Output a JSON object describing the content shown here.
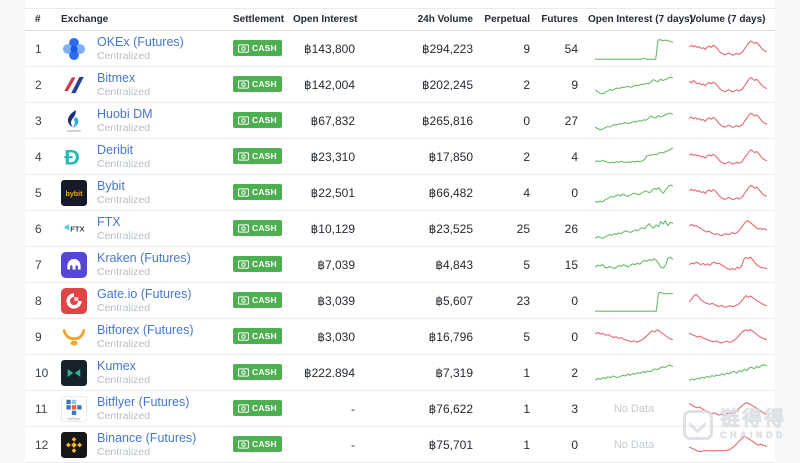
{
  "labels": {
    "no_data": "No Data"
  },
  "colors": {
    "badge_green": "#4caf50",
    "spark_green": "#69bb6d",
    "spark_red": "#e76a6e",
    "link_blue": "#4577cf"
  },
  "watermark": {
    "cn": "链得得",
    "en": "CHAINDD"
  },
  "columns": [
    "#",
    "Exchange",
    "Settlement",
    "Open Interest",
    "24h Volume",
    "Perpetual",
    "Futures",
    "Open Interest (7 days)",
    "Volume (7 days)"
  ],
  "rows": [
    {
      "rank": "1",
      "name": "OKEx (Futures)",
      "type": "Centralized",
      "settlement": "CASH",
      "logo": "okex-logo",
      "open_interest": "฿143,800",
      "volume_24h": "฿294,223",
      "perpetual": "9",
      "futures": "54",
      "oi_spark": {
        "color": "green",
        "points": [
          4,
          4,
          4,
          4,
          4,
          4,
          4,
          4,
          4,
          4,
          4,
          4,
          4,
          4,
          4,
          4,
          4,
          4,
          4,
          4,
          9,
          4,
          4,
          4,
          4,
          4,
          96,
          96,
          92,
          95,
          93,
          88,
          86
        ]
      },
      "vol_spark": {
        "color": "red",
        "points": [
          64,
          70,
          63,
          67,
          60,
          63,
          55,
          58,
          50,
          62,
          66,
          60,
          70,
          65,
          55,
          42,
          34,
          28,
          25,
          29,
          33,
          27,
          23,
          27,
          32,
          26,
          31,
          40,
          55,
          68,
          80,
          90,
          86,
          78,
          84,
          74,
          62,
          50,
          44,
          40
        ]
      }
    },
    {
      "rank": "2",
      "name": "Bitmex",
      "type": "Centralized",
      "settlement": "CASH",
      "logo": "bitmex-logo",
      "open_interest": "฿142,004",
      "volume_24h": "฿202,245",
      "perpetual": "2",
      "futures": "9",
      "oi_spark": {
        "color": "green",
        "points": [
          28,
          20,
          12,
          10,
          18,
          24,
          30,
          26,
          34,
          38,
          36,
          42,
          40,
          46,
          44,
          42,
          48,
          52,
          50,
          56,
          54,
          60,
          58,
          66,
          78,
          72,
          68,
          80,
          74,
          78,
          84,
          90,
          86
        ]
      },
      "vol_spark": {
        "color": "red",
        "points": [
          70,
          62,
          74,
          66,
          58,
          62,
          54,
          57,
          48,
          60,
          64,
          58,
          66,
          60,
          50,
          38,
          30,
          24,
          21,
          26,
          30,
          24,
          20,
          25,
          30,
          24,
          28,
          36,
          50,
          64,
          78,
          88,
          82,
          74,
          80,
          70,
          58,
          46,
          40,
          36
        ]
      }
    },
    {
      "rank": "3",
      "name": "Huobi DM",
      "type": "Centralized",
      "settlement": "CASH",
      "logo": "huobi-logo",
      "open_interest": "฿67,832",
      "volume_24h": "฿265,816",
      "perpetual": "0",
      "futures": "27",
      "oi_spark": {
        "color": "green",
        "points": [
          22,
          16,
          10,
          14,
          20,
          26,
          24,
          30,
          36,
          34,
          40,
          38,
          44,
          42,
          40,
          46,
          50,
          48,
          54,
          52,
          58,
          56,
          64,
          76,
          70,
          66,
          78,
          72,
          76,
          82,
          86,
          90,
          84
        ]
      },
      "vol_spark": {
        "color": "red",
        "points": [
          66,
          72,
          64,
          68,
          61,
          64,
          56,
          59,
          51,
          63,
          67,
          61,
          69,
          63,
          53,
          40,
          32,
          26,
          23,
          28,
          32,
          26,
          22,
          26,
          31,
          25,
          29,
          38,
          53,
          66,
          79,
          89,
          84,
          76,
          82,
          72,
          60,
          48,
          42,
          38
        ]
      }
    },
    {
      "rank": "4",
      "name": "Deribit",
      "type": "Centralized",
      "settlement": "CASH",
      "logo": "deribit-logo",
      "open_interest": "฿23,310",
      "volume_24h": "฿17,850",
      "perpetual": "2",
      "futures": "4",
      "oi_spark": {
        "color": "green",
        "points": [
          30,
          34,
          30,
          36,
          32,
          28,
          24,
          28,
          25,
          30,
          27,
          32,
          28,
          26,
          30,
          27,
          31,
          28,
          32,
          30,
          34,
          40,
          58,
          62,
          60,
          66,
          64,
          70,
          74,
          72,
          78,
          82,
          88,
          94
        ]
      },
      "vol_spark": {
        "color": "red",
        "points": [
          62,
          68,
          60,
          64,
          57,
          60,
          52,
          55,
          47,
          59,
          63,
          57,
          65,
          59,
          49,
          37,
          29,
          23,
          20,
          25,
          29,
          23,
          19,
          23,
          28,
          22,
          26,
          35,
          50,
          63,
          76,
          86,
          81,
          73,
          79,
          69,
          57,
          45,
          39,
          35
        ]
      }
    },
    {
      "rank": "5",
      "name": "Bybit",
      "type": "Centralized",
      "settlement": "CASH",
      "logo": "bybit-logo",
      "open_interest": "฿22,501",
      "volume_24h": "฿66,482",
      "perpetual": "4",
      "futures": "0",
      "oi_spark": {
        "color": "green",
        "points": [
          12,
          8,
          14,
          10,
          18,
          24,
          30,
          36,
          32,
          40,
          44,
          38,
          46,
          42,
          36,
          40,
          46,
          52,
          48,
          44,
          50,
          56,
          62,
          58,
          54,
          66,
          74,
          70,
          78,
          60,
          52,
          68,
          82,
          90,
          86
        ]
      },
      "vol_spark": {
        "color": "red",
        "points": [
          65,
          71,
          63,
          67,
          60,
          63,
          55,
          58,
          50,
          62,
          66,
          60,
          68,
          62,
          52,
          39,
          31,
          25,
          22,
          27,
          31,
          25,
          21,
          25,
          30,
          24,
          28,
          37,
          52,
          65,
          78,
          88,
          83,
          75,
          81,
          71,
          59,
          47,
          41,
          37
        ]
      }
    },
    {
      "rank": "6",
      "name": "FTX",
      "type": "Centralized",
      "settlement": "CASH",
      "logo": "ftx-logo",
      "open_interest": "฿10,129",
      "volume_24h": "฿23,525",
      "perpetual": "25",
      "futures": "26",
      "oi_spark": {
        "color": "green",
        "points": [
          10,
          16,
          12,
          8,
          14,
          20,
          26,
          22,
          30,
          26,
          34,
          30,
          38,
          44,
          40,
          36,
          42,
          48,
          44,
          52,
          58,
          54,
          66,
          78,
          62,
          56,
          72,
          64,
          88,
          76,
          92,
          68,
          84,
          80
        ]
      },
      "vol_spark": {
        "color": "red",
        "points": [
          68,
          74,
          66,
          70,
          62,
          58,
          50,
          44,
          38,
          42,
          36,
          30,
          26,
          30,
          25,
          21,
          26,
          31,
          25,
          29,
          35,
          30,
          34,
          42,
          56,
          70,
          84,
          92,
          86,
          78,
          70,
          60,
          52,
          56,
          50,
          54,
          48
        ]
      }
    },
    {
      "rank": "7",
      "name": "Kraken (Futures)",
      "type": "Centralized",
      "settlement": "CASH",
      "logo": "kraken-logo",
      "open_interest": "฿7,039",
      "volume_24h": "฿4,843",
      "perpetual": "5",
      "futures": "15",
      "oi_spark": {
        "color": "green",
        "points": [
          44,
          52,
          48,
          56,
          42,
          38,
          46,
          40,
          36,
          42,
          50,
          46,
          54,
          48,
          44,
          52,
          58,
          54,
          62,
          56,
          66,
          74,
          70,
          78,
          74,
          82,
          76,
          60,
          42,
          38,
          50,
          84,
          90,
          80
        ]
      },
      "vol_spark": {
        "color": "red",
        "points": [
          55,
          62,
          58,
          66,
          60,
          54,
          60,
          52,
          58,
          50,
          62,
          66,
          58,
          62,
          54,
          48,
          40,
          34,
          30,
          36,
          30,
          42,
          36,
          48,
          80,
          88,
          84,
          90,
          76,
          62,
          50,
          44,
          40,
          38,
          36
        ]
      }
    },
    {
      "rank": "8",
      "name": "Gate.io (Futures)",
      "type": "Centralized",
      "settlement": "CASH",
      "logo": "gateio-logo",
      "open_interest": "฿3,039",
      "volume_24h": "฿5,607",
      "perpetual": "23",
      "futures": "0",
      "oi_spark": {
        "color": "green",
        "points": [
          4,
          4,
          4,
          4,
          4,
          4,
          4,
          4,
          4,
          4,
          4,
          4,
          4,
          4,
          4,
          4,
          4,
          4,
          4,
          4,
          4,
          4,
          4,
          4,
          4,
          4,
          4,
          90,
          94,
          88,
          86,
          88,
          87,
          88
        ]
      },
      "vol_spark": {
        "color": "red",
        "points": [
          50,
          62,
          78,
          84,
          72,
          58,
          50,
          44,
          40,
          36,
          42,
          36,
          30,
          26,
          31,
          26,
          22,
          26,
          30,
          25,
          29,
          34,
          40,
          52,
          66,
          78,
          70,
          76,
          68,
          60,
          52,
          46,
          40,
          34,
          30
        ]
      }
    },
    {
      "rank": "9",
      "name": "Bitforex (Futures)",
      "type": "Centralized",
      "settlement": "CASH",
      "logo": "bitforex-logo",
      "open_interest": "฿3,030",
      "volume_24h": "฿16,796",
      "perpetual": "5",
      "futures": "0",
      "oi_spark": {
        "color": "red",
        "points": [
          68,
          74,
          66,
          70,
          60,
          64,
          56,
          50,
          54,
          46,
          50,
          42,
          38,
          34,
          30,
          34,
          28,
          32,
          38,
          46,
          58,
          70,
          82,
          76,
          86,
          80,
          72,
          62,
          52,
          44,
          40
        ]
      },
      "vol_spark": {
        "color": "red",
        "points": [
          70,
          64,
          58,
          52,
          56,
          48,
          44,
          38,
          34,
          30,
          34,
          28,
          24,
          28,
          33,
          27,
          31,
          38,
          50,
          64,
          78,
          86,
          82,
          88,
          78,
          68,
          58,
          50,
          44,
          40
        ]
      }
    },
    {
      "rank": "10",
      "name": "Kumex",
      "type": "Centralized",
      "settlement": "CASH",
      "logo": "kumex-logo",
      "open_interest": "฿222.894",
      "volume_24h": "฿7,319",
      "perpetual": "1",
      "futures": "2",
      "oi_spark": {
        "color": "green",
        "points": [
          20,
          26,
          22,
          30,
          26,
          34,
          30,
          38,
          34,
          30,
          36,
          42,
          38,
          46,
          42,
          50,
          46,
          54,
          50,
          58,
          54,
          62,
          58,
          66,
          72,
          68,
          76,
          82,
          78,
          86,
          90,
          84
        ]
      },
      "vol_spark": {
        "color": "green",
        "points": [
          18,
          24,
          20,
          28,
          24,
          32,
          28,
          36,
          32,
          40,
          36,
          44,
          40,
          48,
          44,
          52,
          48,
          56,
          60,
          52,
          64,
          58,
          70,
          64,
          76,
          80,
          72,
          84,
          78,
          88,
          92,
          86
        ]
      }
    },
    {
      "rank": "11",
      "name": "Bitflyer (Futures)",
      "type": "Centralized",
      "settlement": "CASH",
      "logo": "bitflyer-logo",
      "open_interest": "-",
      "volume_24h": "฿76,622",
      "perpetual": "1",
      "futures": "3",
      "oi_spark": {
        "no_data": true
      },
      "vol_spark": {
        "color": "red",
        "points": [
          78,
          70,
          64,
          58,
          62,
          54,
          48,
          42,
          36,
          30,
          34,
          28,
          24,
          29,
          24,
          30,
          35,
          30,
          36,
          44,
          56,
          66,
          76,
          82,
          78,
          72,
          64,
          56,
          48,
          40,
          32,
          28
        ]
      }
    },
    {
      "rank": "12",
      "name": "Binance (Futures)",
      "type": "Centralized",
      "settlement": "CASH",
      "logo": "binance-logo",
      "open_interest": "-",
      "volume_24h": "฿75,701",
      "perpetual": "1",
      "futures": "0",
      "oi_spark": {
        "no_data": true
      },
      "vol_spark": {
        "color": "red",
        "points": [
          42,
          36,
          30,
          24,
          20,
          24,
          26,
          25,
          25,
          25,
          25,
          26,
          25,
          26,
          28,
          34,
          44,
          56,
          70,
          84,
          92,
          86,
          78,
          70,
          60,
          52,
          56,
          50,
          46
        ]
      }
    }
  ]
}
